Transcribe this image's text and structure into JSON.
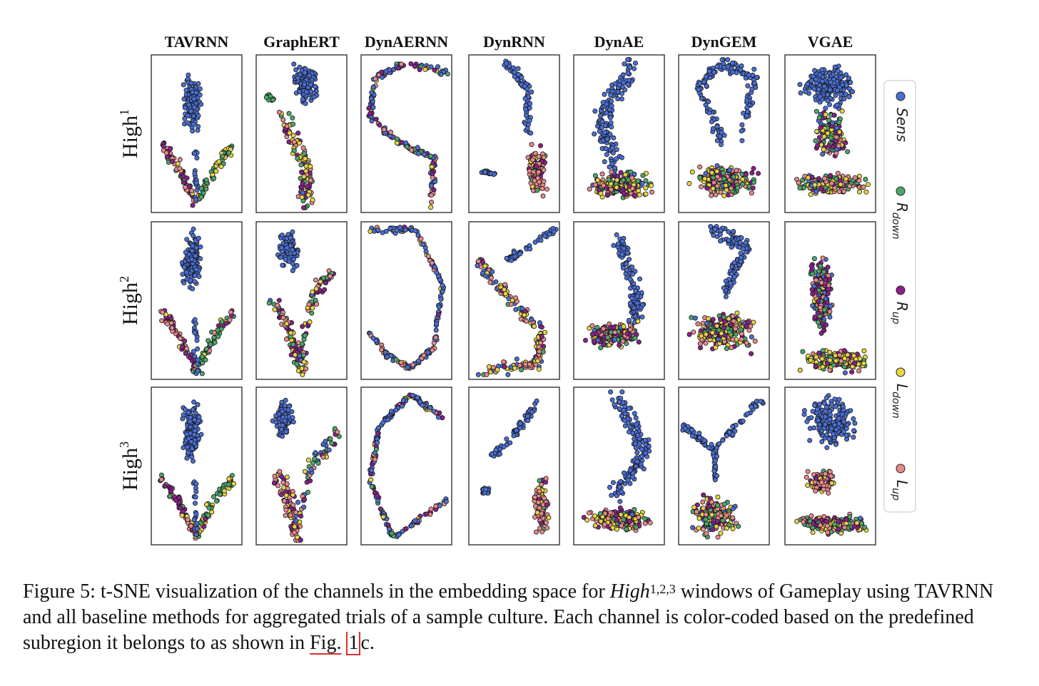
{
  "chart_data": {
    "type": "scatter",
    "methods": [
      "TAVRNN",
      "GraphERT",
      "DynAERNN",
      "DynRNN",
      "DynAE",
      "DynGEM",
      "VGAE"
    ],
    "rows": [
      {
        "base": "High",
        "sup": "1"
      },
      {
        "base": "High",
        "sup": "2"
      },
      {
        "base": "High",
        "sup": "3"
      }
    ],
    "legend": {
      "placement": "right",
      "entries": [
        {
          "name": "Sens",
          "sub": "",
          "color": "#4a6fd6"
        },
        {
          "name": "R",
          "sub": "down",
          "color": "#4aa86a"
        },
        {
          "name": "R",
          "sub": "up",
          "color": "#8a1f8c"
        },
        {
          "name": "L",
          "sub": "down",
          "color": "#e8d440"
        },
        {
          "name": "L",
          "sub": "up",
          "color": "#e8888a"
        }
      ]
    },
    "axes": {
      "ticks": false,
      "grid": false
    }
  },
  "caption": {
    "label": "Figure 5:",
    "text1": " t-SNE visualization of the channels in the embedding space for ",
    "math_base": "High",
    "math_sup": "1,2,3",
    "text2": " windows of Gameplay using TAVRNN and all baseline methods for aggregated trials of a sample culture. Each channel is color-coded based on the predefined subregion it belongs to as shown in ",
    "ref_fig": "Fig.",
    "ref_num": "1",
    "ref_tail": "c."
  }
}
